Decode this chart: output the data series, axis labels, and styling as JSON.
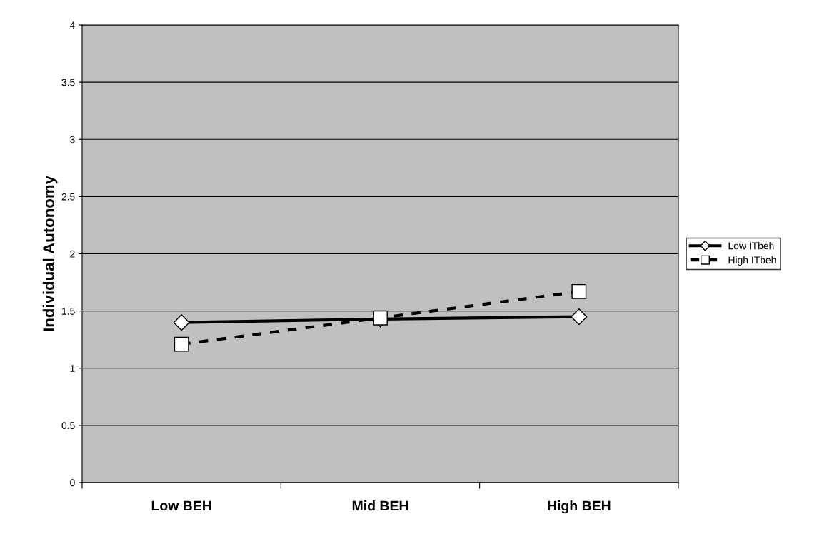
{
  "chart_data": {
    "type": "line",
    "ylabel": "Individual Autonomy",
    "categories": [
      "Low BEH",
      "Mid BEH",
      "High BEH"
    ],
    "series": [
      {
        "name": "Low ITbeh",
        "color": "#000000",
        "values": [
          1.4,
          1.43,
          1.45
        ],
        "marker": "diamond",
        "line_style": "solid"
      },
      {
        "name": "High ITbeh",
        "color": "#000000",
        "values": [
          1.21,
          1.44,
          1.67
        ],
        "marker": "square",
        "line_style": "dashed"
      }
    ],
    "ylim": [
      0,
      4
    ],
    "yticks": [
      0,
      0.5,
      1,
      1.5,
      2,
      2.5,
      3,
      3.5,
      4
    ],
    "grid": "y",
    "legend": "right"
  }
}
